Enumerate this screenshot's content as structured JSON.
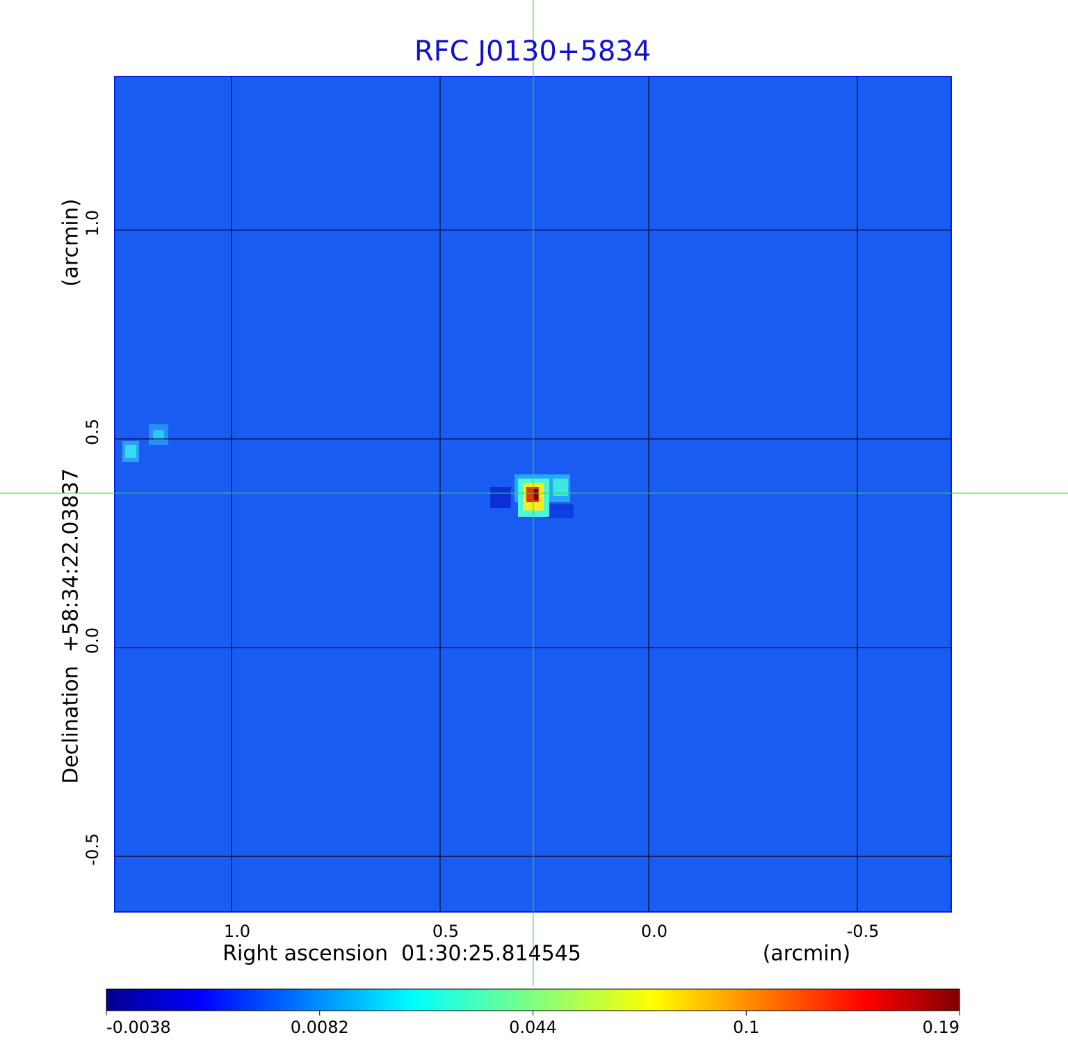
{
  "chart_data": {
    "type": "image",
    "title": "RFC J0130+5834",
    "x_label": "Right ascension  01:30:25.814545",
    "x_unit": "(arcmin)",
    "y_label": "Declination  +58:34:22.03837",
    "y_unit": "(arcmin)",
    "xlim": [
      1.28,
      -0.725
    ],
    "ylim": [
      -0.633,
      1.368
    ],
    "xticks": [
      {
        "value": 1,
        "label": "1.0"
      },
      0.5,
      {
        "value": 0,
        "label": "0.0"
      },
      -0.5
    ],
    "yticks": [
      -0.5,
      {
        "value": 0,
        "label": "0.0"
      },
      0.5,
      {
        "value": 1,
        "label": "1.0"
      }
    ],
    "grid": true,
    "colormap": "jet",
    "colorbar_lim": [
      -0.0038,
      0.19
    ],
    "colorbar_ticks": [
      -0.0038,
      0.0082,
      0.044,
      0.1,
      0.19
    ]
  }
}
